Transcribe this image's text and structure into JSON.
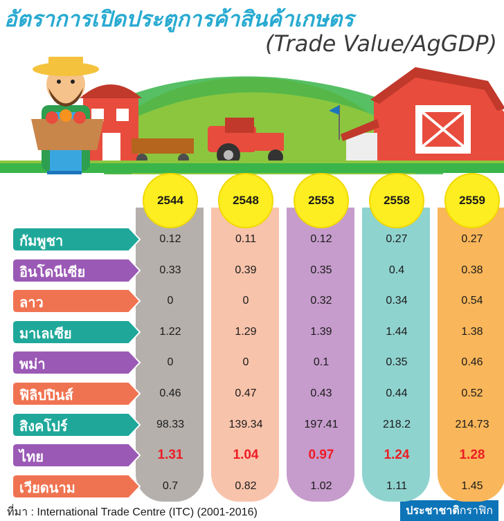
{
  "header": {
    "title": "อัตราการเปิดประตูการค้าสินค้าเกษตร",
    "subtitle": "(Trade Value/AgGDP)"
  },
  "colors": {
    "title": "#27aad1",
    "year_circle": "#fcee21",
    "highlight_value": "#ed1c24",
    "column_backgrounds": [
      "#b5b0ac",
      "#f8c3ab",
      "#c69ccc",
      "#8fd3cf",
      "#f9b65a"
    ],
    "label_arrows": [
      "#1fa89a",
      "#9b59b6",
      "#f07351"
    ]
  },
  "chart_data": {
    "type": "table",
    "title": "อัตราการเปิดประตูการค้าสินค้าเกษตร",
    "subtitle": "(Trade Value/AgGDP)",
    "columns": [
      "2544",
      "2548",
      "2553",
      "2558",
      "2559"
    ],
    "rows": [
      {
        "label": "กัมพูชา",
        "values": [
          "0.12",
          "0.11",
          "0.12",
          "0.27",
          "0.27"
        ],
        "highlight": false
      },
      {
        "label": "อินโดนีเซีย",
        "values": [
          "0.33",
          "0.39",
          "0.35",
          "0.4",
          "0.38"
        ],
        "highlight": false
      },
      {
        "label": "ลาว",
        "values": [
          "0",
          "0",
          "0.32",
          "0.34",
          "0.54"
        ],
        "highlight": false
      },
      {
        "label": "มาเลเซีย",
        "values": [
          "1.22",
          "1.29",
          "1.39",
          "1.44",
          "1.38"
        ],
        "highlight": false
      },
      {
        "label": "พม่า",
        "values": [
          "0",
          "0",
          "0.1",
          "0.35",
          "0.46"
        ],
        "highlight": false
      },
      {
        "label": "ฟิลิปปินส์",
        "values": [
          "0.46",
          "0.47",
          "0.43",
          "0.44",
          "0.52"
        ],
        "highlight": false
      },
      {
        "label": "สิงคโปร์",
        "values": [
          "98.33",
          "139.34",
          "197.41",
          "218.2",
          "214.73"
        ],
        "highlight": false
      },
      {
        "label": "ไทย",
        "values": [
          "1.31",
          "1.04",
          "0.97",
          "1.24",
          "1.28"
        ],
        "highlight": true
      },
      {
        "label": "เวียดนาม",
        "values": [
          "0.7",
          "0.82",
          "1.02",
          "1.11",
          "1.45"
        ],
        "highlight": false
      }
    ]
  },
  "footer": {
    "source": "ที่มา : International Trade Centre (ITC) (2001-2016)",
    "logo_bold": "ประชาชาติ",
    "logo_thin": "กราฟิก"
  }
}
